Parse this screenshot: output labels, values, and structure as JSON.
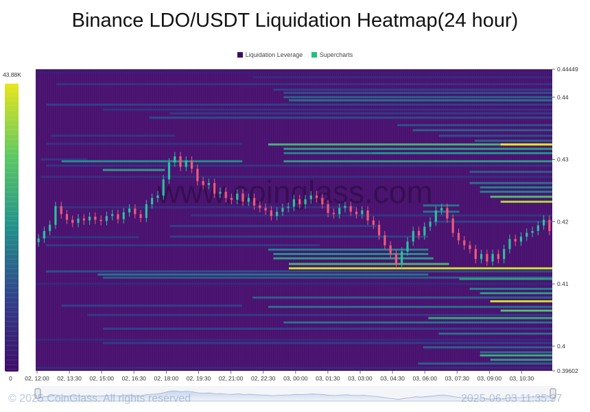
{
  "title": "Binance LDO/USDT Liquidation Heatmap(24 hour)",
  "legend": [
    {
      "label": "Liquidation Leverage",
      "color": "#3c0b6b"
    },
    {
      "label": "Supercharts",
      "color": "#1fc27a"
    }
  ],
  "colorbar": {
    "max_label": "43.88K",
    "min_label": "0"
  },
  "watermark": "www.coinglass.com",
  "footer": {
    "left": "© 2025 CoinGlass. All rights reserved",
    "right": "2025-06-03 11:35:37"
  },
  "colors": {
    "background": "#48126e",
    "stripe": "#531b78",
    "candle_up": "#2cbfa0",
    "candle_down": "#ef5a78"
  },
  "chart_data": {
    "type": "heatmap",
    "title": "Binance LDO/USDT Liquidation Heatmap(24 hour)",
    "x_ticks": [
      "02, 12:00",
      "02, 13:30",
      "02, 15:00",
      "02, 16:30",
      "02, 18:00",
      "02, 19:30",
      "02, 21:00",
      "02, 22:30",
      "03, 00:00",
      "03, 01:30",
      "03, 03:00",
      "03, 04:30",
      "03, 06:00",
      "03, 07:30",
      "03, 09:00",
      "03, 10:30"
    ],
    "y_range": [
      0.39602,
      0.44449
    ],
    "y_ticks": [
      0.44449,
      0.44,
      0.43,
      0.42,
      0.41,
      0.4,
      0.39602
    ],
    "y_tick_labels": [
      "0.44449",
      "0.44",
      "0.43",
      "0.42",
      "0.41",
      "0.4",
      "0.39602"
    ],
    "color_scale": {
      "min": 0,
      "max": 43880,
      "colors": [
        "#3e0b69",
        "#31408a",
        "#21918c",
        "#5ec962",
        "#e8e51a"
      ]
    },
    "price_series_hours": 24,
    "price_close": [
      0.4173,
      0.4185,
      0.4195,
      0.4225,
      0.4212,
      0.4203,
      0.4198,
      0.4205,
      0.4202,
      0.4208,
      0.4203,
      0.4201,
      0.4209,
      0.4212,
      0.4204,
      0.4215,
      0.4221,
      0.4212,
      0.4206,
      0.4228,
      0.4238,
      0.4242,
      0.4268,
      0.4295,
      0.4305,
      0.4288,
      0.4298,
      0.4285,
      0.4265,
      0.4259,
      0.4262,
      0.4245,
      0.4248,
      0.4238,
      0.4235,
      0.4245,
      0.4232,
      0.4238,
      0.4226,
      0.4222,
      0.4218,
      0.4209,
      0.4216,
      0.4222,
      0.4224,
      0.4236,
      0.4228,
      0.4236,
      0.4242,
      0.4238,
      0.4228,
      0.4214,
      0.4212,
      0.4222,
      0.4225,
      0.4216,
      0.4212,
      0.4218,
      0.4202,
      0.4195,
      0.4178,
      0.4162,
      0.4148,
      0.4132,
      0.4152,
      0.4168,
      0.4185,
      0.4178,
      0.4192,
      0.42,
      0.4218,
      0.4222,
      0.4205,
      0.4182,
      0.417,
      0.4162,
      0.4156,
      0.414,
      0.4148,
      0.4136,
      0.4148,
      0.414,
      0.4156,
      0.4172,
      0.4168,
      0.4176,
      0.4182,
      0.4185,
      0.4194,
      0.4203,
      0.4185
    ],
    "liquidation_bands": [
      {
        "price": 0.4439,
        "start": 0.0,
        "end": 1.0,
        "level": 0.1
      },
      {
        "price": 0.4432,
        "start": 0.42,
        "end": 1.0,
        "level": 0.15
      },
      {
        "price": 0.4421,
        "start": 0.04,
        "end": 1.0,
        "level": 0.2
      },
      {
        "price": 0.4412,
        "start": 0.46,
        "end": 1.0,
        "level": 0.25
      },
      {
        "price": 0.4407,
        "start": 0.48,
        "end": 1.0,
        "level": 0.3
      },
      {
        "price": 0.44,
        "start": 0.48,
        "end": 1.0,
        "level": 0.35
      },
      {
        "price": 0.4395,
        "start": 0.49,
        "end": 1.0,
        "level": 0.4
      },
      {
        "price": 0.4388,
        "start": 0.02,
        "end": 1.0,
        "level": 0.25
      },
      {
        "price": 0.438,
        "start": 0.13,
        "end": 1.0,
        "level": 0.2
      },
      {
        "price": 0.4374,
        "start": 0.26,
        "end": 1.0,
        "level": 0.22
      },
      {
        "price": 0.4367,
        "start": 0.22,
        "end": 1.0,
        "level": 0.28
      },
      {
        "price": 0.4355,
        "start": 0.7,
        "end": 1.0,
        "level": 0.3
      },
      {
        "price": 0.4347,
        "start": 0.73,
        "end": 1.0,
        "level": 0.35
      },
      {
        "price": 0.4338,
        "start": 0.03,
        "end": 0.27,
        "level": 0.2
      },
      {
        "price": 0.4338,
        "start": 0.78,
        "end": 1.0,
        "level": 0.3
      },
      {
        "price": 0.433,
        "start": 0.85,
        "end": 1.0,
        "level": 0.35
      },
      {
        "price": 0.4325,
        "start": 0.02,
        "end": 0.4,
        "level": 0.18
      },
      {
        "price": 0.4324,
        "start": 0.45,
        "end": 1.0,
        "level": 0.65
      },
      {
        "price": 0.4324,
        "start": 0.9,
        "end": 1.0,
        "level": 1.0
      },
      {
        "price": 0.4317,
        "start": 0.48,
        "end": 1.0,
        "level": 0.55
      },
      {
        "price": 0.431,
        "start": 0.48,
        "end": 0.65,
        "level": 0.45
      },
      {
        "price": 0.431,
        "start": 0.65,
        "end": 1.0,
        "level": 0.5
      },
      {
        "price": 0.43,
        "start": 0.01,
        "end": 0.1,
        "level": 0.2
      },
      {
        "price": 0.4297,
        "start": 0.05,
        "end": 0.4,
        "level": 0.5
      },
      {
        "price": 0.4297,
        "start": 0.48,
        "end": 1.0,
        "level": 0.55
      },
      {
        "price": 0.429,
        "start": 0.02,
        "end": 1.0,
        "level": 0.2
      },
      {
        "price": 0.4283,
        "start": 0.13,
        "end": 0.25,
        "level": 0.55
      },
      {
        "price": 0.428,
        "start": 0.84,
        "end": 1.0,
        "level": 0.35
      },
      {
        "price": 0.4272,
        "start": 0.01,
        "end": 1.0,
        "level": 0.18
      },
      {
        "price": 0.4262,
        "start": 0.84,
        "end": 1.0,
        "level": 0.4
      },
      {
        "price": 0.4255,
        "start": 0.86,
        "end": 1.0,
        "level": 0.45
      },
      {
        "price": 0.4248,
        "start": 0.86,
        "end": 1.0,
        "level": 0.45
      },
      {
        "price": 0.424,
        "start": 0.88,
        "end": 1.0,
        "level": 0.7
      },
      {
        "price": 0.4232,
        "start": 0.9,
        "end": 1.0,
        "level": 0.9
      },
      {
        "price": 0.4223,
        "start": 0.04,
        "end": 0.62,
        "level": 0.18
      },
      {
        "price": 0.4226,
        "start": 0.75,
        "end": 0.82,
        "level": 0.4
      },
      {
        "price": 0.4216,
        "start": 0.75,
        "end": 0.82,
        "level": 0.4
      },
      {
        "price": 0.421,
        "start": 0.3,
        "end": 1.0,
        "level": 0.2
      },
      {
        "price": 0.42,
        "start": 0.77,
        "end": 1.0,
        "level": 0.25
      },
      {
        "price": 0.4193,
        "start": 0.26,
        "end": 0.66,
        "level": 0.25
      },
      {
        "price": 0.4176,
        "start": 0.26,
        "end": 0.76,
        "level": 0.25
      },
      {
        "price": 0.4175,
        "start": 0.01,
        "end": 0.2,
        "level": 0.2
      },
      {
        "price": 0.4162,
        "start": 0.02,
        "end": 0.55,
        "level": 0.22
      },
      {
        "price": 0.4155,
        "start": 0.45,
        "end": 0.76,
        "level": 0.45
      },
      {
        "price": 0.4148,
        "start": 0.46,
        "end": 0.76,
        "level": 0.5
      },
      {
        "price": 0.4141,
        "start": 0.46,
        "end": 0.77,
        "level": 0.55
      },
      {
        "price": 0.4132,
        "start": 0.49,
        "end": 0.8,
        "level": 0.65
      },
      {
        "price": 0.4125,
        "start": 0.49,
        "end": 1.0,
        "level": 0.95
      },
      {
        "price": 0.412,
        "start": 0.02,
        "end": 1.0,
        "level": 0.3
      },
      {
        "price": 0.4115,
        "start": 0.12,
        "end": 0.76,
        "level": 0.4
      },
      {
        "price": 0.411,
        "start": 0.13,
        "end": 1.0,
        "level": 0.35
      },
      {
        "price": 0.4108,
        "start": 0.82,
        "end": 1.0,
        "level": 0.55
      },
      {
        "price": 0.41,
        "start": 0.0,
        "end": 1.0,
        "level": 0.15
      },
      {
        "price": 0.4092,
        "start": 0.84,
        "end": 1.0,
        "level": 0.45
      },
      {
        "price": 0.4085,
        "start": 0.86,
        "end": 1.0,
        "level": 0.55
      },
      {
        "price": 0.4078,
        "start": 0.42,
        "end": 1.0,
        "level": 0.35
      },
      {
        "price": 0.4072,
        "start": 0.88,
        "end": 1.0,
        "level": 0.95
      },
      {
        "price": 0.4065,
        "start": 0.05,
        "end": 0.4,
        "level": 0.25
      },
      {
        "price": 0.4063,
        "start": 0.45,
        "end": 1.0,
        "level": 0.4
      },
      {
        "price": 0.4057,
        "start": 0.9,
        "end": 1.0,
        "level": 0.7
      },
      {
        "price": 0.405,
        "start": 0.1,
        "end": 1.0,
        "level": 0.22
      },
      {
        "price": 0.4045,
        "start": 0.76,
        "end": 1.0,
        "level": 0.6
      },
      {
        "price": 0.4038,
        "start": 0.48,
        "end": 1.0,
        "level": 0.4
      },
      {
        "price": 0.4028,
        "start": 0.13,
        "end": 1.0,
        "level": 0.25
      },
      {
        "price": 0.402,
        "start": 0.78,
        "end": 1.0,
        "level": 0.4
      },
      {
        "price": 0.401,
        "start": 0.0,
        "end": 1.0,
        "level": 0.15
      },
      {
        "price": 0.4005,
        "start": 0.13,
        "end": 1.0,
        "level": 0.22
      },
      {
        "price": 0.3998,
        "start": 0.75,
        "end": 1.0,
        "level": 0.35
      },
      {
        "price": 0.399,
        "start": 0.86,
        "end": 1.0,
        "level": 0.4
      },
      {
        "price": 0.3985,
        "start": 0.86,
        "end": 1.0,
        "level": 0.6
      },
      {
        "price": 0.3978,
        "start": 0.88,
        "end": 1.0,
        "level": 0.55
      },
      {
        "price": 0.3972,
        "start": 0.74,
        "end": 1.0,
        "level": 0.35
      },
      {
        "price": 0.3965,
        "start": 0.0,
        "end": 1.0,
        "level": 0.15
      }
    ]
  }
}
